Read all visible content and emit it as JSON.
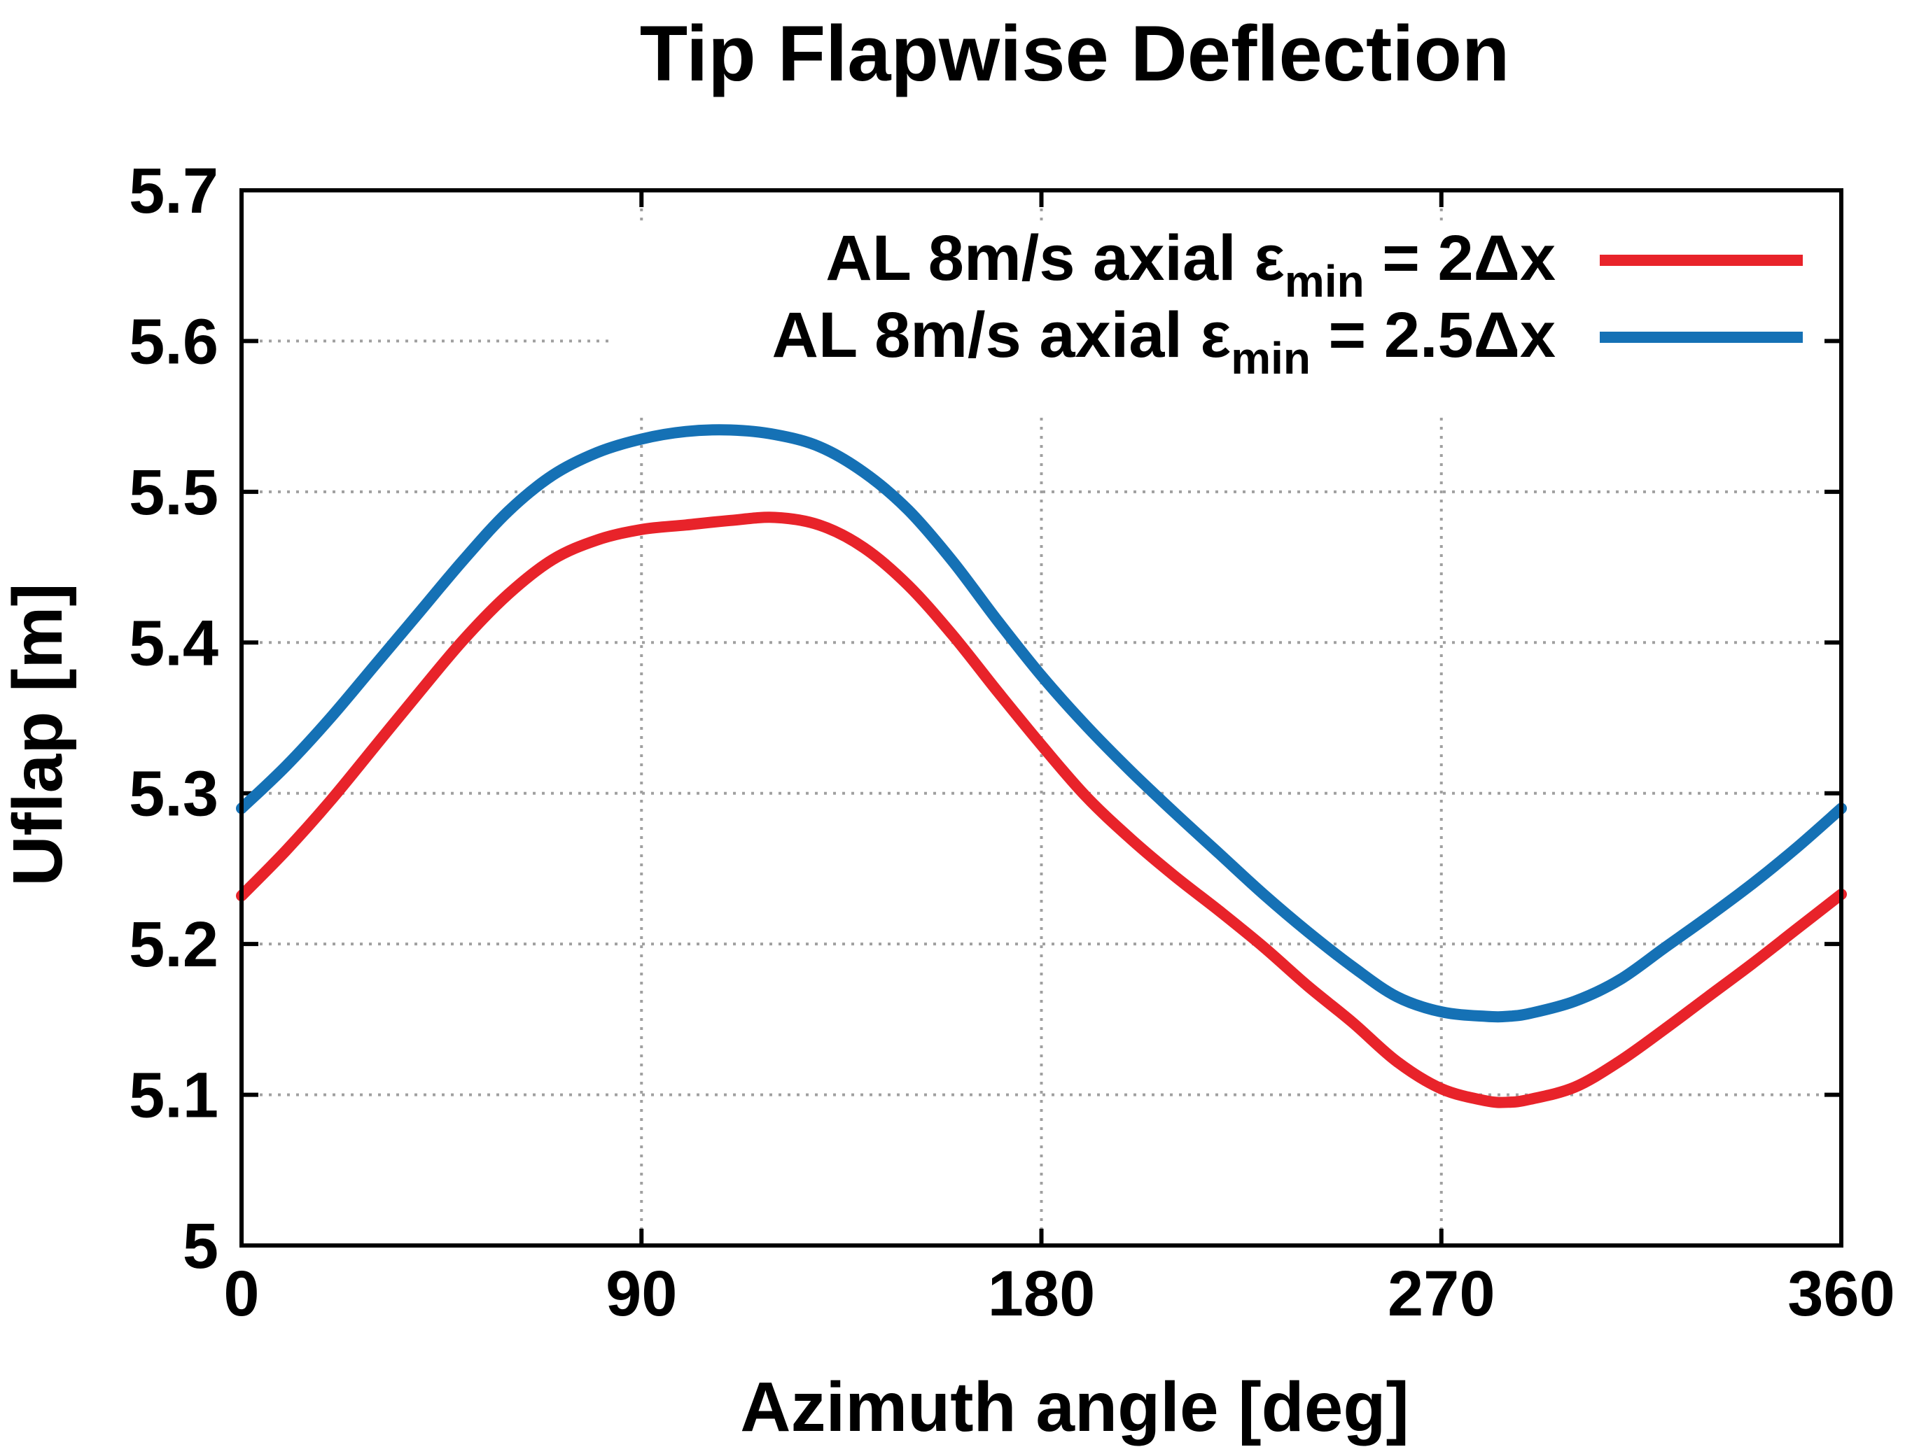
{
  "colors": {
    "series_a": "#e8232a",
    "series_b": "#1571b5",
    "grid": "#a0a0a0",
    "axis": "#000000"
  },
  "chart_data": {
    "type": "line",
    "title": "Tip Flapwise Deflection",
    "xlabel": "Azimuth angle [deg]",
    "ylabel": "Uflap [m]",
    "xlim": [
      0,
      360
    ],
    "ylim": [
      5.0,
      5.7
    ],
    "xticks": [
      0,
      90,
      180,
      270,
      360
    ],
    "xtick_labels": [
      "0",
      "90",
      "180",
      "270",
      "360"
    ],
    "yticks": [
      5.0,
      5.1,
      5.2,
      5.3,
      5.4,
      5.5,
      5.6,
      5.7
    ],
    "ytick_labels": [
      "5",
      "5.1",
      "5.2",
      "5.3",
      "5.4",
      "5.5",
      "5.6",
      "5.7"
    ],
    "grid": true,
    "legend_position": "top-right",
    "series": [
      {
        "name": "AL 8m/s axial εmin = 2Δx",
        "label_main": "AL 8m/s axial ε",
        "label_sub": "min",
        "label_tail": " = 2Δx",
        "color": "#e8232a",
        "x": [
          0,
          10,
          20,
          30,
          40,
          50,
          60,
          70,
          80,
          90,
          100,
          110,
          120,
          130,
          140,
          150,
          160,
          170,
          180,
          190,
          200,
          210,
          220,
          230,
          240,
          250,
          260,
          270,
          280,
          285,
          290,
          300,
          310,
          320,
          330,
          340,
          350,
          360
        ],
        "y": [
          5.232,
          5.262,
          5.295,
          5.331,
          5.367,
          5.402,
          5.432,
          5.455,
          5.468,
          5.475,
          5.478,
          5.481,
          5.483,
          5.478,
          5.463,
          5.438,
          5.405,
          5.368,
          5.332,
          5.298,
          5.27,
          5.245,
          5.222,
          5.198,
          5.172,
          5.148,
          5.122,
          5.104,
          5.096,
          5.095,
          5.097,
          5.105,
          5.122,
          5.143,
          5.165,
          5.187,
          5.21,
          5.233
        ]
      },
      {
        "name": "AL 8m/s axial εmin = 2.5Δx",
        "label_main": "AL 8m/s axial ε",
        "label_sub": "min",
        "label_tail": " = 2.5Δx",
        "color": "#1571b5",
        "x": [
          0,
          10,
          20,
          30,
          40,
          50,
          60,
          70,
          80,
          90,
          100,
          110,
          120,
          130,
          140,
          150,
          160,
          170,
          180,
          190,
          200,
          210,
          220,
          230,
          240,
          250,
          260,
          270,
          280,
          285,
          290,
          300,
          310,
          320,
          330,
          340,
          350,
          360
        ],
        "y": [
          5.29,
          5.318,
          5.35,
          5.385,
          5.42,
          5.455,
          5.487,
          5.511,
          5.526,
          5.535,
          5.54,
          5.541,
          5.538,
          5.53,
          5.513,
          5.488,
          5.454,
          5.415,
          5.378,
          5.345,
          5.315,
          5.287,
          5.26,
          5.233,
          5.208,
          5.185,
          5.165,
          5.155,
          5.152,
          5.152,
          5.154,
          5.162,
          5.176,
          5.197,
          5.218,
          5.24,
          5.264,
          5.29
        ]
      }
    ]
  }
}
